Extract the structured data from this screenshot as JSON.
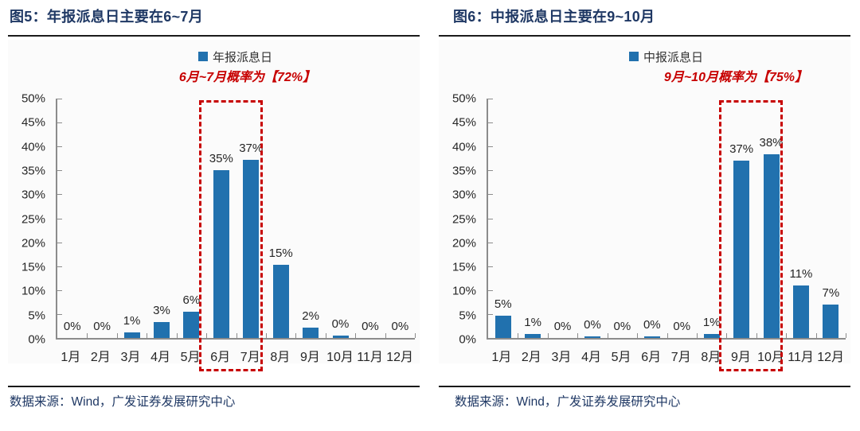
{
  "colors": {
    "bar_blue": "#2171AE",
    "highlight_red": "#C70000",
    "title_navy": "#1F3864",
    "axis_gray": "#8C8C8C",
    "text_dark": "#262626"
  },
  "chart_data": [
    {
      "type": "bar",
      "title": "图5：年报派息日主要在6~7月",
      "legend": "年报派息日",
      "annotation": "6月~7月概率为【72%】",
      "categories": [
        "1月",
        "2月",
        "3月",
        "4月",
        "5月",
        "6月",
        "7月",
        "8月",
        "9月",
        "10月",
        "11月",
        "12月"
      ],
      "values": [
        0,
        0,
        1,
        3,
        6,
        35,
        37,
        15,
        2,
        0,
        0,
        0
      ],
      "value_labels": [
        "0%",
        "0%",
        "1%",
        "3%",
        "6%",
        "35%",
        "37%",
        "15%",
        "2%",
        "0%",
        "0%",
        "0%"
      ],
      "visible_bar_heights": [
        0,
        0,
        1.1,
        3.3,
        5.5,
        35,
        37.2,
        15.3,
        2.2,
        0.5,
        0,
        0
      ],
      "ylim": [
        0,
        50
      ],
      "yticks": [
        "0%",
        "5%",
        "10%",
        "15%",
        "20%",
        "25%",
        "30%",
        "35%",
        "40%",
        "45%",
        "50%"
      ],
      "highlight_index_range": [
        5,
        6
      ],
      "highlight_months": [
        "6月",
        "7月"
      ],
      "legend_position": "top-center",
      "grid": false,
      "source": "数据来源：Wind，广发证券发展研究中心"
    },
    {
      "type": "bar",
      "title": "图6：中报派息日主要在9~10月",
      "legend": "中报派息日",
      "annotation": "9月~10月概率为【75%】",
      "categories": [
        "1月",
        "2月",
        "3月",
        "4月",
        "5月",
        "6月",
        "7月",
        "8月",
        "9月",
        "10月",
        "11月",
        "12月"
      ],
      "values": [
        5,
        1,
        0,
        0,
        0,
        0,
        0,
        1,
        37,
        38,
        11,
        7
      ],
      "value_labels": [
        "5%",
        "1%",
        "0%",
        "0%",
        "0%",
        "0%",
        "0%",
        "1%",
        "37%",
        "38%",
        "11%",
        "7%"
      ],
      "visible_bar_heights": [
        4.7,
        0.8,
        0,
        0.4,
        0,
        0.4,
        0,
        0.8,
        37,
        38.3,
        11,
        7
      ],
      "ylim": [
        0,
        50
      ],
      "yticks": [
        "0%",
        "5%",
        "10%",
        "15%",
        "20%",
        "25%",
        "30%",
        "35%",
        "40%",
        "45%",
        "50%"
      ],
      "highlight_index_range": [
        8,
        9
      ],
      "highlight_months": [
        "9月",
        "10月"
      ],
      "legend_position": "top-center",
      "grid": false,
      "source": "数据来源：Wind，广发证券发展研究中心"
    }
  ]
}
